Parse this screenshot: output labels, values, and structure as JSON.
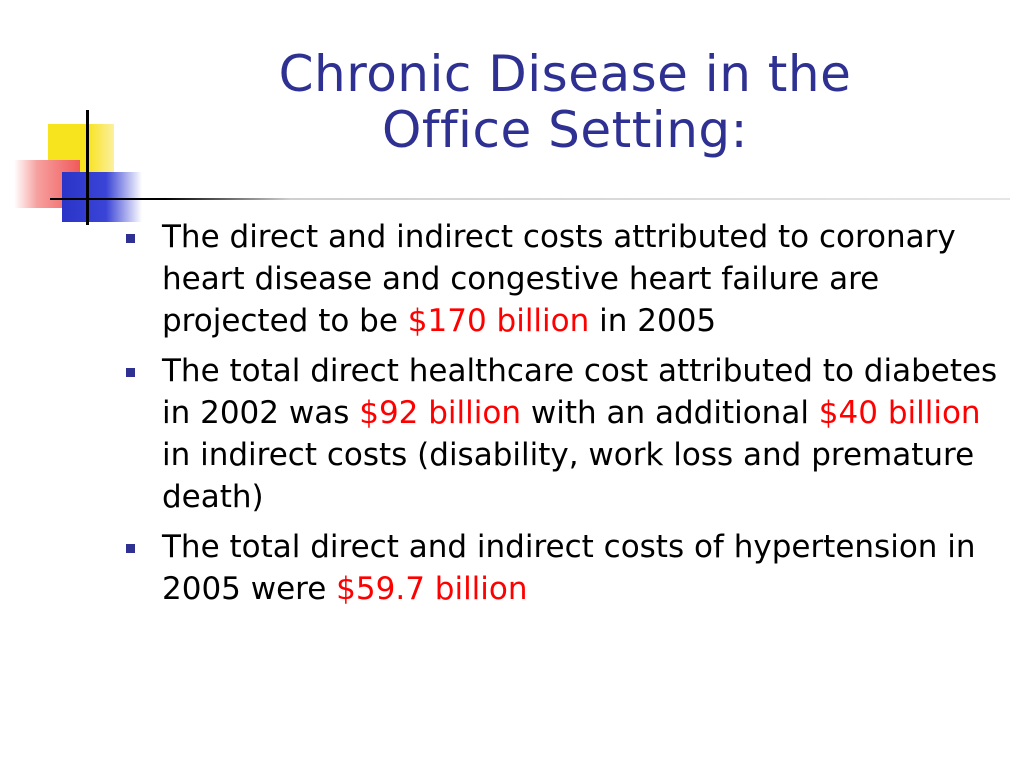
{
  "title": {
    "line1": "Chronic Disease in the",
    "line2": "Office Setting:"
  },
  "colors": {
    "title": "#2e3192",
    "highlight": "#ff0000",
    "bullet_marker": "#2e3192"
  },
  "bullets": [
    {
      "t1": "The direct and indirect costs attributed to coronary heart disease and congestive heart failure are projected to be ",
      "h1": "$170 billion",
      "t2": " in 2005"
    },
    {
      "t1": "The total direct healthcare cost attributed to diabetes in 2002 was ",
      "h1": "$92 billion",
      "t2": " with an additional ",
      "h2": "$40 billion",
      "t3": " in indirect costs (disability, work loss and premature death)"
    },
    {
      "t1": "The total direct and indirect costs of hypertension in 2005 were ",
      "h1": "$59.7 billion"
    }
  ]
}
